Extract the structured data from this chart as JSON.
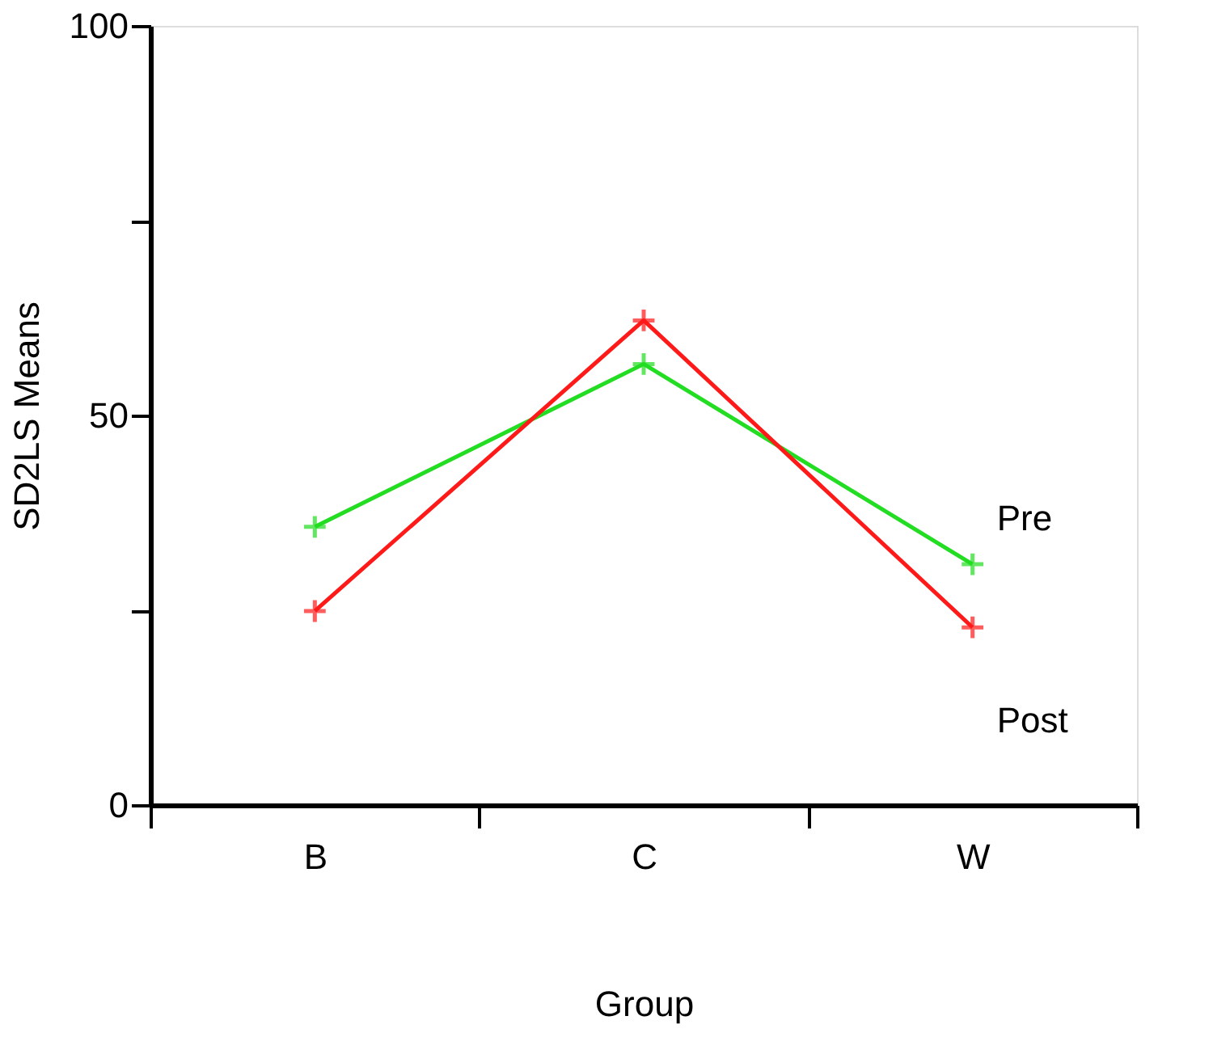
{
  "chart_data": {
    "type": "line",
    "categories": [
      "B",
      "C",
      "W"
    ],
    "series": [
      {
        "name": "Pre",
        "color": "#22dd22",
        "values": [
          35.7,
          56.6,
          30.9
        ]
      },
      {
        "name": "Post",
        "color": "#ff1a1a",
        "values": [
          24.9,
          62.2,
          22.8
        ]
      }
    ],
    "xlabel": "Group",
    "ylabel": "SD2LS Means",
    "ylim": [
      0,
      100
    ],
    "yticks": [
      0,
      {
        "value": 25,
        "label": null
      },
      50,
      {
        "value": 75,
        "label": null
      },
      100
    ],
    "grid": false,
    "legend": false,
    "marker": "cross",
    "line_style": "solid"
  }
}
